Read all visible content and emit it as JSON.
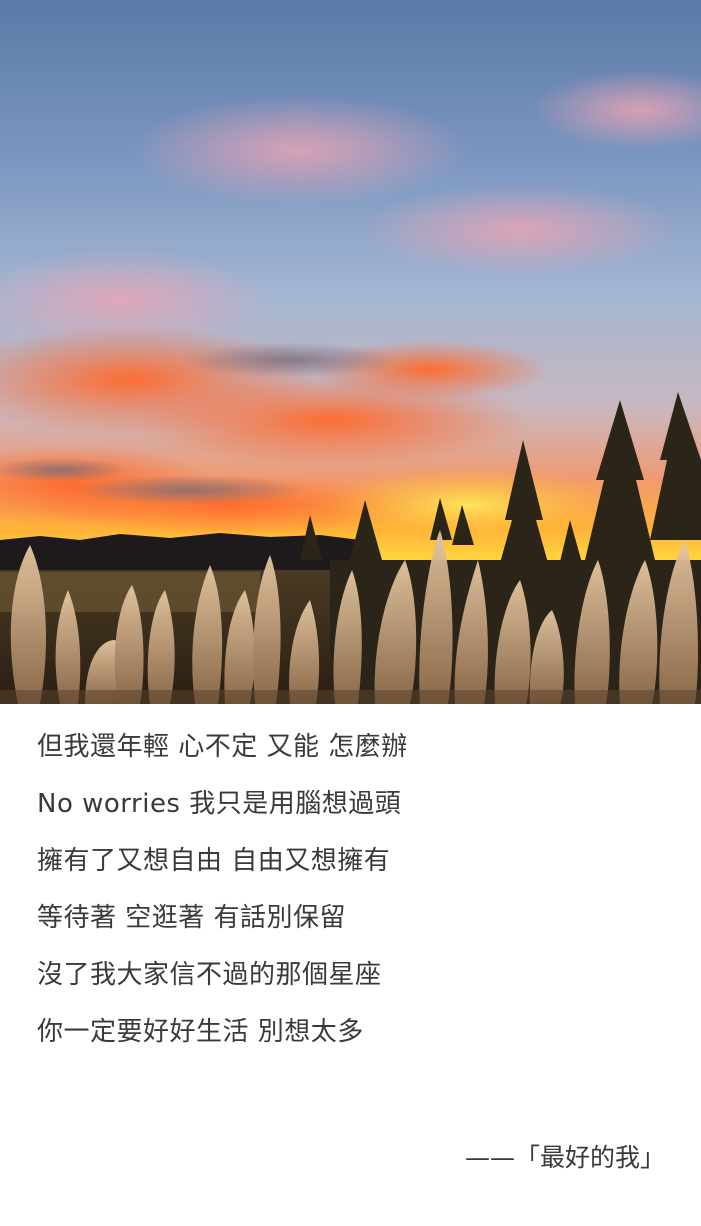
{
  "lyrics": {
    "lines": [
      "但我還年輕 心不定 又能 怎麼辦",
      "No worries 我只是用腦想過頭",
      "擁有了又想自由 自由又想擁有",
      "等待著 空逛著 有話別保留",
      "沒了我大家信不過的那個星座",
      "你一定要好好生活 別想太多"
    ]
  },
  "signature": "——「最好的我」",
  "colors": {
    "sky_top": "#5f7aa6",
    "sky_mid": "#9fb6d3",
    "sunset_orange": "#ff8a3c",
    "sunset_gold": "#ffc02e",
    "reeds": "#c9a988",
    "text": "#3a3a3a"
  }
}
